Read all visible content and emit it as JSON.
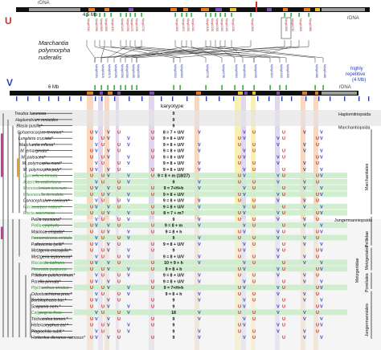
{
  "figure": {
    "u_label": "U",
    "v_label": "V",
    "u_rdna_left": "rDNA",
    "u_rdna_right": "rDNA",
    "u_size": "4.5 Mb",
    "v_size": "6 Mb",
    "v_rdna": "rDNA",
    "species_title_1": "Marchantia",
    "species_title_2": "polymorpha",
    "species_title_3": "ruderalis",
    "repetitive_1": "highly",
    "repetitive_2": "repetitive",
    "repetitive_3": "(4 Mb)",
    "karyotype_header": "karyotype"
  },
  "colors": {
    "u_red": "#d32a2a",
    "v_blue": "#2a3fb8",
    "green_gene": "#1f9a2e",
    "orange_band": "#f6c9a8",
    "purple_band": "#d8c8ea",
    "yellow_band": "#f4ee9a",
    "green_row": "#cdeccc",
    "grey_col": "#e4e4e4"
  },
  "u_genes": [
    "Mp•g00510",
    "Mp•g00560",
    "Mp•g00820",
    "Mp•g00890",
    "Mp•g01130",
    "Mp•g01240",
    "Mp•g01330",
    "Mp•g01470",
    "Mp•g01590",
    "Mp•g01720",
    "Mp•g01800",
    "Mp•g01870",
    "Mp•g01950",
    "Mp•g02010",
    "Mp•g02180",
    "Mp•g02230",
    "Mp•g02300",
    "Mp•g02340",
    "Mp•g02420",
    "Mp•g02530",
    "Mp•g02600",
    "Mp•g02690",
    "Mp•g02710",
    "Mp•g02800",
    "Mp•g02880"
  ],
  "v_genes": [
    "MpVg00040",
    "MpVg00100",
    "MpVg00170",
    "MpVg00280",
    "MpVg00330",
    "MpVg00390",
    "MpVg00430",
    "MpVg00490",
    "MpVg00540",
    "MpVg00620",
    "MpVg00700",
    "MpVg00780",
    "MpVg00840",
    "MpVg00910",
    "MpVg01030",
    "MpVg01120",
    "MpVg01210",
    "MpVg01300",
    "MpVg01380",
    "MpVg01460"
  ],
  "groups": [
    "Haplomitriopsida",
    "Marchantiopsida",
    "Marchantiales",
    "Jungermanniopsida",
    "Pelliidae",
    "Metzgeriidae",
    "Metzgeriales",
    "Porellales",
    "Jungermanniales"
  ],
  "rows": [
    {
      "name": "Treubia lacunosa",
      "green": false,
      "kar": "9"
    },
    {
      "name": "Haplomitrium mnioides",
      "green": false,
      "kar": "9"
    },
    {
      "name": "Blasia pusilla*",
      "green": false,
      "kar": "9"
    },
    {
      "name": "Sphaerocarpos texanus*",
      "green": false,
      "kar": "8 = 7 + U/V"
    },
    {
      "name": "Lunularia cruciata*",
      "green": false,
      "kar": "9 = 8 + U/V"
    },
    {
      "name": "Marchantia inflexa*",
      "green": false,
      "kar": "9 = 8 + U/V"
    },
    {
      "name": "M. emarginata*",
      "green": false,
      "kar": "9 = 8 + U/V"
    },
    {
      "name": "M. paleacea*",
      "green": false,
      "kar": "9 = 8 + U/V"
    },
    {
      "name": "M. polymorpha mont*",
      "green": false,
      "kar": "9 = 8 + U/V"
    },
    {
      "name": "M. polymorpha poly*",
      "green": false,
      "kar": "9 = 8 + U/V"
    },
    {
      "name": "Dumortiera hirsuta",
      "green": true,
      "kar": "9 = 8 + m (18/27)"
    },
    {
      "name": "Asterella wallichiana",
      "green": true,
      "kar": "9"
    },
    {
      "name": "Monoselenium tenerum",
      "green": true,
      "kar": "9 = 7+H+h"
    },
    {
      "name": "Wiesnerella denudata",
      "green": true,
      "kar": "9 = 8 + U/V"
    },
    {
      "name": "Conocephalum conicum*",
      "green": false,
      "kar": "9 = 8 + U/V"
    },
    {
      "name": "Ricciocarpos natans*",
      "green": true,
      "kar": "9 = 8 + U/V"
    },
    {
      "name": "Riccia cavernosa",
      "green": true,
      "kar": "8 = 7 + m?"
    },
    {
      "name": "Pellia neesiana*",
      "green": false,
      "kar": "9"
    },
    {
      "name": "Pellia epiphylla",
      "green": true,
      "kar": "9 = 8 + m"
    },
    {
      "name": "Makinoa crispata*",
      "green": false,
      "kar": "9 = 8 + h"
    },
    {
      "name": "Fossombronia cristula",
      "green": true,
      "kar": "9"
    },
    {
      "name": "Pallavicinia lyellii*",
      "green": false,
      "kar": "9 = 8 + U/V"
    },
    {
      "name": "Metzgeria crassipilis*",
      "green": false,
      "kar": "9"
    },
    {
      "name": "Metzgeria leptoneura*",
      "green": false,
      "kar": "9 = 8 + U/V"
    },
    {
      "name": "Riccardia latifrons",
      "green": true,
      "kar": "10 = 9 + h"
    },
    {
      "name": "Pleurozia purpurea",
      "green": true,
      "kar": "9 = 8 + h"
    },
    {
      "name": "Ptilidium pulcherrimum*",
      "green": false,
      "kar": "9 = 8 + U/V"
    },
    {
      "name": "Porella pinnata*",
      "green": false,
      "kar": "9 = 8 + U/V"
    },
    {
      "name": "Ptychanthus striatus",
      "green": true,
      "kar": "9 = 7+H+h"
    },
    {
      "name": "Odontoschisma prov.*",
      "green": false,
      "kar": "9 = 8 + h"
    },
    {
      "name": "Barbilophozia bar.*",
      "green": false,
      "kar": "9"
    },
    {
      "name": "Scapania nem.*",
      "green": false,
      "kar": "9"
    },
    {
      "name": "Calypogeia fissa",
      "green": true,
      "kar": "18"
    },
    {
      "name": "Trichocolea tomen.*",
      "green": false,
      "kar": "9"
    },
    {
      "name": "Heteroscyphus zol.*",
      "green": false,
      "kar": "9"
    },
    {
      "name": "Plagiochila subfl.*",
      "green": false,
      "kar": "9"
    },
    {
      "name": "Herbertus dicranus ramosus*",
      "green": false,
      "kar": "9"
    }
  ]
}
